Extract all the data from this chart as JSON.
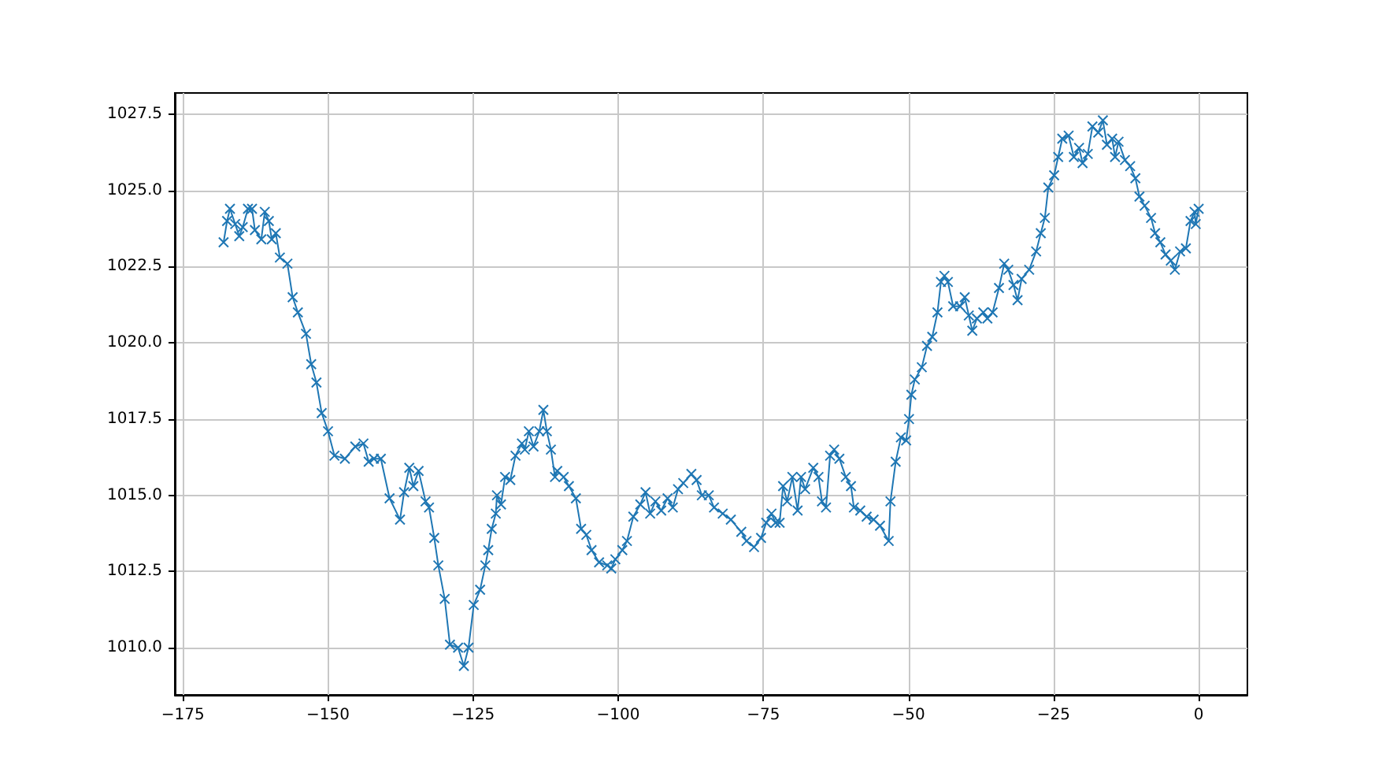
{
  "chart_data": {
    "type": "line",
    "marker": "cross",
    "grid": true,
    "xlim": [
      -176.4,
      8.4
    ],
    "ylim": [
      1008.45,
      1028.2
    ],
    "xticks": [
      {
        "value": -175,
        "label": "−175"
      },
      {
        "value": -150,
        "label": "−150"
      },
      {
        "value": -125,
        "label": "−125"
      },
      {
        "value": -100,
        "label": "−100"
      },
      {
        "value": -75,
        "label": "−75"
      },
      {
        "value": -50,
        "label": "−50"
      },
      {
        "value": -25,
        "label": "−25"
      },
      0
    ],
    "yticks": [
      {
        "value": 1010,
        "label": "1010.0"
      },
      {
        "value": 1012.5,
        "label": "1012.5"
      },
      {
        "value": 1015,
        "label": "1015.0"
      },
      {
        "value": 1017.5,
        "label": "1017.5"
      },
      {
        "value": 1020,
        "label": "1020.0"
      },
      {
        "value": 1022.5,
        "label": "1022.5"
      },
      {
        "value": 1025,
        "label": "1025.0"
      },
      {
        "value": 1027.5,
        "label": "1027.5"
      }
    ],
    "series": [
      {
        "color": "#1f77b4",
        "x": [
          -168.0,
          -167.4,
          -166.9,
          -166.0,
          -165.3,
          -164.7,
          -163.8,
          -163.1,
          -162.6,
          -161.5,
          -160.9,
          -160.2,
          -159.7,
          -159.0,
          -158.3,
          -157.0,
          -156.1,
          -155.2,
          -153.8,
          -152.9,
          -152.0,
          -151.1,
          -150.0,
          -148.9,
          -147.1,
          -145.3,
          -143.9,
          -143.0,
          -142.1,
          -140.9,
          -139.4,
          -137.6,
          -136.9,
          -136.0,
          -135.3,
          -134.4,
          -133.2,
          -132.6,
          -131.7,
          -131.0,
          -129.9,
          -129.0,
          -127.6,
          -126.6,
          -125.8,
          -124.9,
          -123.8,
          -122.9,
          -122.4,
          -121.8,
          -121.1,
          -120.9,
          -120.2,
          -119.5,
          -118.6,
          -117.7,
          -116.6,
          -116.1,
          -115.4,
          -114.6,
          -113.6,
          -112.9,
          -112.3,
          -111.6,
          -110.9,
          -110.5,
          -109.4,
          -108.5,
          -107.3,
          -106.4,
          -105.5,
          -104.6,
          -103.3,
          -101.9,
          -101.2,
          -100.5,
          -99.3,
          -98.5,
          -97.4,
          -96.2,
          -95.3,
          -94.5,
          -93.6,
          -92.6,
          -91.5,
          -90.6,
          -89.7,
          -88.8,
          -87.4,
          -86.5,
          -85.6,
          -84.4,
          -83.5,
          -82.0,
          -80.6,
          -78.8,
          -77.9,
          -76.6,
          -75.4,
          -74.5,
          -73.6,
          -72.9,
          -72.2,
          -71.6,
          -70.9,
          -70.0,
          -69.1,
          -68.5,
          -67.8,
          -66.4,
          -65.5,
          -64.9,
          -64.2,
          -63.5,
          -62.8,
          -61.9,
          -60.8,
          -59.9,
          -59.4,
          -58.3,
          -57.2,
          -56.0,
          -54.9,
          -53.4,
          -53.1,
          -52.2,
          -51.3,
          -50.4,
          -49.9,
          -49.5,
          -48.9,
          -47.7,
          -46.8,
          -45.9,
          -45.0,
          -44.4,
          -43.8,
          -43.2,
          -42.3,
          -41.1,
          -40.3,
          -39.6,
          -39.0,
          -38.2,
          -37.1,
          -36.4,
          -35.5,
          -34.4,
          -33.5,
          -32.8,
          -31.9,
          -31.2,
          -30.5,
          -29.2,
          -28.0,
          -27.2,
          -26.5,
          -25.9,
          -24.9,
          -24.2,
          -23.5,
          -22.4,
          -21.5,
          -20.6,
          -20.0,
          -19.1,
          -18.3,
          -17.3,
          -16.5,
          -15.8,
          -14.9,
          -14.4,
          -13.8,
          -12.7,
          -11.8,
          -10.9,
          -10.2,
          -9.3,
          -8.2,
          -7.5,
          -6.6,
          -5.7,
          -4.8,
          -4.1,
          -3.2,
          -2.2,
          -1.4,
          -0.7,
          -0.5,
          0
        ],
        "values": [
          1023.3,
          1024.0,
          1024.4,
          1023.9,
          1023.5,
          1023.8,
          1024.4,
          1024.4,
          1023.7,
          1023.4,
          1024.3,
          1024.0,
          1023.4,
          1023.6,
          1022.8,
          1022.6,
          1021.5,
          1021.0,
          1020.3,
          1019.3,
          1018.7,
          1017.7,
          1017.1,
          1016.3,
          1016.2,
          1016.6,
          1016.7,
          1016.1,
          1016.2,
          1016.2,
          1014.9,
          1014.2,
          1015.1,
          1015.9,
          1015.3,
          1015.8,
          1014.8,
          1014.6,
          1013.6,
          1012.7,
          1011.6,
          1010.1,
          1010.0,
          1009.4,
          1010.0,
          1011.4,
          1011.9,
          1012.7,
          1013.2,
          1013.9,
          1014.4,
          1015.0,
          1014.7,
          1015.6,
          1015.5,
          1016.3,
          1016.7,
          1016.5,
          1017.1,
          1016.6,
          1017.1,
          1017.8,
          1017.1,
          1016.5,
          1015.6,
          1015.8,
          1015.6,
          1015.3,
          1014.9,
          1013.9,
          1013.7,
          1013.2,
          1012.8,
          1012.7,
          1012.6,
          1012.9,
          1013.2,
          1013.5,
          1014.3,
          1014.7,
          1015.1,
          1014.4,
          1014.8,
          1014.5,
          1014.9,
          1014.6,
          1015.2,
          1015.4,
          1015.7,
          1015.5,
          1015.0,
          1015.0,
          1014.6,
          1014.4,
          1014.2,
          1013.8,
          1013.5,
          1013.3,
          1013.6,
          1014.1,
          1014.4,
          1014.1,
          1014.1,
          1015.3,
          1014.8,
          1015.6,
          1014.5,
          1015.6,
          1015.2,
          1015.9,
          1015.6,
          1014.8,
          1014.6,
          1016.3,
          1016.5,
          1016.2,
          1015.6,
          1015.3,
          1014.6,
          1014.5,
          1014.3,
          1014.2,
          1014.0,
          1013.5,
          1014.8,
          1016.1,
          1016.9,
          1016.8,
          1017.5,
          1018.3,
          1018.8,
          1019.2,
          1019.9,
          1020.2,
          1021.0,
          1022.0,
          1022.2,
          1022.0,
          1021.2,
          1021.2,
          1021.5,
          1020.9,
          1020.4,
          1020.8,
          1021.0,
          1020.8,
          1021.0,
          1021.8,
          1022.6,
          1022.4,
          1021.9,
          1021.4,
          1022.1,
          1022.4,
          1023.0,
          1023.6,
          1024.1,
          1025.1,
          1025.5,
          1026.1,
          1026.7,
          1026.8,
          1026.1,
          1026.4,
          1025.9,
          1026.2,
          1027.1,
          1026.9,
          1027.3,
          1026.5,
          1026.7,
          1026.1,
          1026.6,
          1026.0,
          1025.8,
          1025.4,
          1024.8,
          1024.5,
          1024.1,
          1023.6,
          1023.3,
          1022.9,
          1022.7,
          1022.4,
          1023.0,
          1023.1,
          1024.0,
          1024.3,
          1023.9,
          1024.4
        ]
      }
    ]
  }
}
